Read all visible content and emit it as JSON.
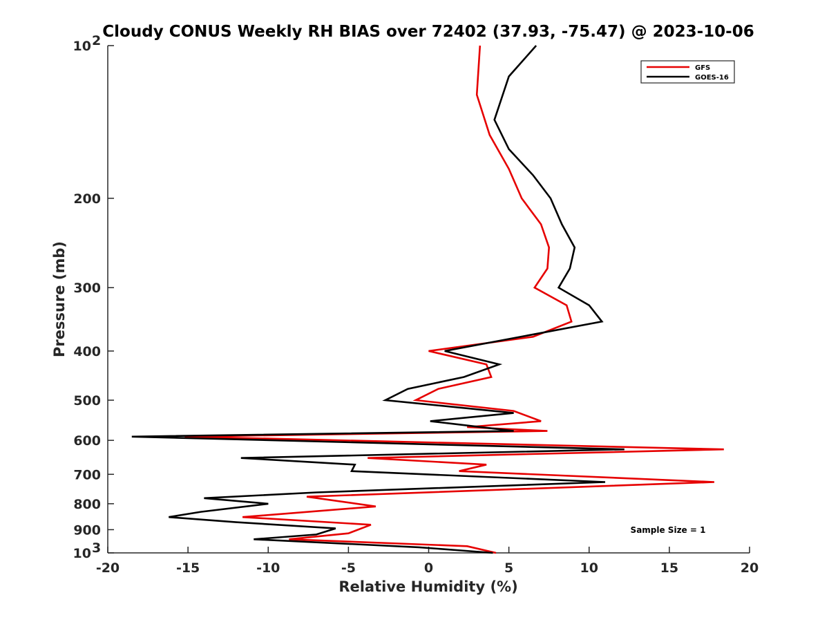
{
  "chart_data": {
    "type": "line",
    "title": "Cloudy CONUS Weekly RH BIAS over 72402 (37.93, -75.47) @ 2023-10-06",
    "xlabel": "Relative Humidity (%)",
    "ylabel": "Pressure (mb)",
    "xlim": [
      -20,
      20
    ],
    "ylim": [
      100,
      1000
    ],
    "y_scale": "log",
    "y_reversed": true,
    "grid": false,
    "legend_position": "top-right",
    "x_ticks": [
      "-20",
      "-15",
      "-10",
      "-5",
      "0",
      "5",
      "10",
      "15",
      "20"
    ],
    "y_ticks": [
      {
        "value": 100,
        "label": "10",
        "sup": "2"
      },
      {
        "value": 200,
        "label": "200",
        "sup": ""
      },
      {
        "value": 300,
        "label": "300",
        "sup": ""
      },
      {
        "value": 400,
        "label": "400",
        "sup": ""
      },
      {
        "value": 500,
        "label": "500",
        "sup": ""
      },
      {
        "value": 600,
        "label": "600",
        "sup": ""
      },
      {
        "value": 700,
        "label": "700",
        "sup": ""
      },
      {
        "value": 800,
        "label": "800",
        "sup": ""
      },
      {
        "value": 900,
        "label": "900",
        "sup": ""
      },
      {
        "value": 1000,
        "label": "10",
        "sup": "3"
      }
    ],
    "annotation": "Sample Size = 1",
    "series": [
      {
        "name": "GFS",
        "color": "#e60000",
        "points": [
          [
            3.2,
            100
          ],
          [
            3.0,
            125
          ],
          [
            3.8,
            150
          ],
          [
            5.0,
            175
          ],
          [
            5.8,
            200
          ],
          [
            7.0,
            225
          ],
          [
            7.5,
            250
          ],
          [
            7.4,
            275
          ],
          [
            6.6,
            300
          ],
          [
            8.6,
            325
          ],
          [
            8.9,
            350
          ],
          [
            6.5,
            375
          ],
          [
            0.0,
            400
          ],
          [
            3.6,
            425
          ],
          [
            3.9,
            450
          ],
          [
            0.6,
            475
          ],
          [
            -0.8,
            500
          ],
          [
            5.3,
            525
          ],
          [
            7.0,
            550
          ],
          [
            2.4,
            565
          ],
          [
            7.4,
            575
          ],
          [
            -15.2,
            590
          ],
          [
            18.4,
            625
          ],
          [
            -3.8,
            650
          ],
          [
            3.6,
            670
          ],
          [
            1.9,
            690
          ],
          [
            17.8,
            725
          ],
          [
            -7.6,
            775
          ],
          [
            -3.3,
            810
          ],
          [
            -11.6,
            850
          ],
          [
            -3.6,
            880
          ],
          [
            -5.0,
            915
          ],
          [
            -8.7,
            940
          ],
          [
            2.4,
            970
          ],
          [
            4.2,
            1000
          ]
        ]
      },
      {
        "name": "GOES-16",
        "color": "#000000",
        "points": [
          [
            6.7,
            100
          ],
          [
            5.0,
            115
          ],
          [
            4.1,
            140
          ],
          [
            5.0,
            160
          ],
          [
            6.5,
            180
          ],
          [
            7.6,
            200
          ],
          [
            8.3,
            225
          ],
          [
            9.1,
            250
          ],
          [
            8.8,
            275
          ],
          [
            8.1,
            300
          ],
          [
            10.0,
            325
          ],
          [
            10.8,
            350
          ],
          [
            1.0,
            400
          ],
          [
            4.4,
            425
          ],
          [
            2.2,
            450
          ],
          [
            -1.3,
            475
          ],
          [
            -2.7,
            500
          ],
          [
            5.3,
            530
          ],
          [
            0.1,
            550
          ],
          [
            5.3,
            575
          ],
          [
            -18.5,
            590
          ],
          [
            12.2,
            625
          ],
          [
            -11.7,
            650
          ],
          [
            -4.6,
            670
          ],
          [
            -4.8,
            690
          ],
          [
            11.0,
            725
          ],
          [
            -7.0,
            760
          ],
          [
            -14.0,
            780
          ],
          [
            -10.0,
            800
          ],
          [
            -14.2,
            830
          ],
          [
            -16.2,
            850
          ],
          [
            -12.0,
            870
          ],
          [
            -5.8,
            895
          ],
          [
            -7.0,
            920
          ],
          [
            -10.9,
            940
          ],
          [
            -0.6,
            975
          ],
          [
            4.0,
            1000
          ]
        ]
      }
    ]
  }
}
